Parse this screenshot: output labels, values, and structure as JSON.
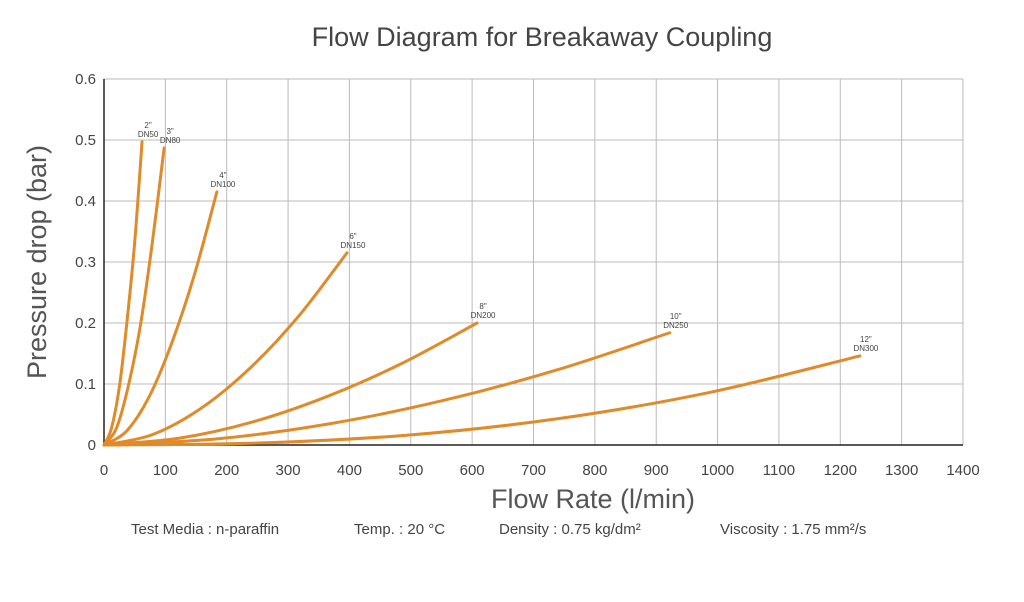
{
  "chart_data": {
    "type": "line",
    "title": "Flow Diagram for Breakaway Coupling",
    "xlabel": "Flow Rate (l/min)",
    "ylabel": "Pressure drop (bar)",
    "xlim": [
      0,
      1400
    ],
    "ylim": [
      0,
      0.6
    ],
    "grid": true,
    "x_ticks": [
      "0",
      "100",
      "200",
      "300",
      "400",
      "500",
      "600",
      "700",
      "800",
      "900",
      "1000",
      "1100",
      "1200",
      "1300",
      "1400"
    ],
    "y_ticks": [
      "0",
      "0.1",
      "0.2",
      "0.3",
      "0.4",
      "0.5",
      "0.6"
    ],
    "line_color": "#e08a2a",
    "series": [
      {
        "name": "2\"",
        "sub": "DN50",
        "x": [
          0,
          12,
          25,
          37,
          50,
          62
        ],
        "y": [
          0,
          0.027,
          0.095,
          0.198,
          0.332,
          0.497
        ]
      },
      {
        "name": "3\"",
        "sub": "DN80",
        "x": [
          0,
          20,
          39,
          59,
          78,
          98
        ],
        "y": [
          0,
          0.027,
          0.094,
          0.194,
          0.326,
          0.487
        ]
      },
      {
        "name": "4\"",
        "sub": "DN100",
        "x": [
          0,
          37,
          74,
          110,
          147,
          184
        ],
        "y": [
          0,
          0.023,
          0.08,
          0.166,
          0.278,
          0.415
        ]
      },
      {
        "name": "6\"",
        "sub": "DN150",
        "x": [
          0,
          79,
          158,
          238,
          317,
          396
        ],
        "y": [
          0,
          0.017,
          0.06,
          0.126,
          0.211,
          0.315
        ]
      },
      {
        "name": "8\"",
        "sub": "DN200",
        "x": [
          0,
          122,
          243,
          365,
          486,
          608
        ],
        "y": [
          0,
          0.011,
          0.038,
          0.08,
          0.134,
          0.2
        ]
      },
      {
        "name": "10\"",
        "sub": "DN250",
        "x": [
          0,
          184,
          369,
          553,
          738,
          922
        ],
        "y": [
          0,
          0.01,
          0.035,
          0.073,
          0.123,
          0.184
        ]
      },
      {
        "name": "12\"",
        "sub": "DN300",
        "x": [
          0,
          246,
          493,
          739,
          986,
          1232
        ],
        "y": [
          0,
          0.003,
          0.016,
          0.043,
          0.086,
          0.146
        ]
      }
    ]
  },
  "footer": {
    "media": "Test Media : n-paraffin",
    "temp": "Temp. : 20 °C",
    "density": "Density : 0.75 kg/dm²",
    "viscosity": "Viscosity : 1.75 mm²/s"
  }
}
